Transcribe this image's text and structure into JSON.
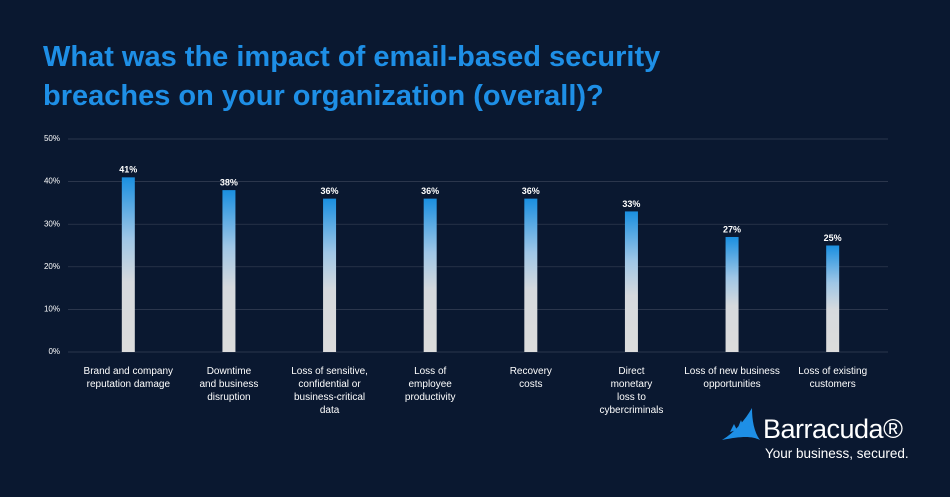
{
  "chart_data": {
    "type": "bar",
    "title": "What was the impact of email-based security\nbreaches on your organization (overall)?",
    "categories": [
      "Brand and company\nreputation damage",
      "Downtime\nand business\ndisruption",
      "Loss of sensitive,\nconfidential or\nbusiness-critical\ndata",
      "Loss of\nemployee\nproductivity",
      "Recovery\ncosts",
      "Direct\nmonetary\nloss to\ncybercriminals",
      "Loss of new business\nopportunities",
      "Loss of existing\ncustomers"
    ],
    "values": [
      41,
      38,
      36,
      36,
      36,
      33,
      27,
      25
    ],
    "value_labels": [
      "41%",
      "38%",
      "36%",
      "36%",
      "36%",
      "33%",
      "27%",
      "25%"
    ],
    "color": "#1a8fe0",
    "ylim": [
      0,
      50
    ],
    "yticks": [
      {
        "value": 0,
        "label": "0%"
      },
      {
        "value": 10,
        "label": "10%"
      },
      {
        "value": 20,
        "label": "20%"
      },
      {
        "value": 30,
        "label": "30%"
      },
      {
        "value": 40,
        "label": "40%"
      },
      {
        "value": 50,
        "label": "50%"
      }
    ],
    "grid": true
  },
  "brand": {
    "name": "Barracuda®",
    "tagline": "Your business, secured."
  }
}
